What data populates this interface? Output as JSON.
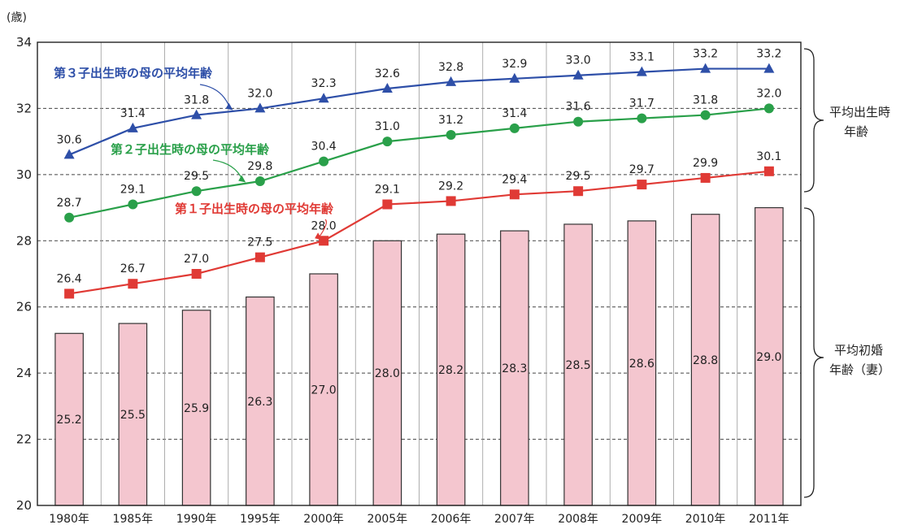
{
  "chart_data": {
    "type": "bar",
    "unit": "(歳)",
    "categories": [
      "1980年",
      "1985年",
      "1990年",
      "1995年",
      "2000年",
      "2005年",
      "2006年",
      "2007年",
      "2008年",
      "2009年",
      "2010年",
      "2011年"
    ],
    "ylim": [
      20,
      34
    ],
    "yticks": [
      "20",
      "22",
      "24",
      "26",
      "28",
      "30",
      "32",
      "34"
    ],
    "grid": true,
    "bars": {
      "values": [
        25.2,
        25.5,
        25.9,
        26.3,
        27.0,
        28.0,
        28.2,
        28.3,
        28.5,
        28.6,
        28.8,
        29.0
      ],
      "labels": [
        "25.2",
        "25.5",
        "25.9",
        "26.3",
        "27.0",
        "28.0",
        "28.2",
        "28.3",
        "28.5",
        "28.6",
        "28.8",
        "29.0"
      ],
      "color": "#f4c6cf"
    },
    "series": [
      {
        "name": "第３子出生時の母の平均年齢",
        "color": "#2e4fa8",
        "marker": "triangle",
        "values": [
          30.6,
          31.4,
          31.8,
          32.0,
          32.3,
          32.6,
          32.8,
          32.9,
          33.0,
          33.1,
          33.2,
          33.2
        ],
        "labels": [
          "30.6",
          "31.4",
          "31.8",
          "32.0",
          "32.3",
          "32.6",
          "32.8",
          "32.9",
          "33.0",
          "33.1",
          "33.2",
          "33.2"
        ]
      },
      {
        "name": "第２子出生時の母の平均年齢",
        "color": "#2aa04a",
        "marker": "circle",
        "values": [
          28.7,
          29.1,
          29.5,
          29.8,
          30.4,
          31.0,
          31.2,
          31.4,
          31.6,
          31.7,
          31.8,
          32.0
        ],
        "labels": [
          "28.7",
          "29.1",
          "29.5",
          "29.8",
          "30.4",
          "31.0",
          "31.2",
          "31.4",
          "31.6",
          "31.7",
          "31.8",
          "32.0"
        ]
      },
      {
        "name": "第１子出生時の母の平均年齢",
        "color": "#e03a35",
        "marker": "square",
        "values": [
          26.4,
          26.7,
          27.0,
          27.5,
          28.0,
          29.1,
          29.2,
          29.4,
          29.5,
          29.7,
          29.9,
          30.1
        ],
        "labels": [
          "26.4",
          "26.7",
          "27.0",
          "27.5",
          "28.0",
          "29.1",
          "29.2",
          "29.4",
          "29.5",
          "29.7",
          "29.9",
          "30.1"
        ]
      }
    ],
    "bracket_labels": {
      "lines_line1": "平均出生時",
      "lines_line2": "年齢",
      "bars_line1": "平均初婚",
      "bars_line2": "年齢（妻）"
    }
  }
}
